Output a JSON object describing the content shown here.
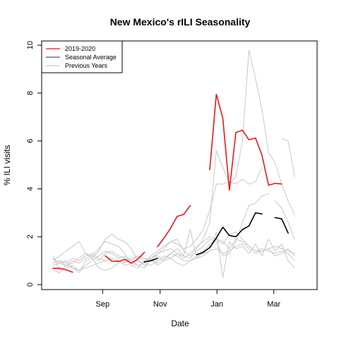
{
  "chart_data": {
    "type": "line",
    "title": "New Mexico's rILI Seasonality",
    "xlabel": "Date",
    "ylabel": "% ILI visits",
    "ylim": [
      0,
      10
    ],
    "xlim": [
      0,
      38.7
    ],
    "yticks": [
      0,
      2,
      4,
      6,
      8,
      10
    ],
    "xticks": [
      {
        "label": "Sep",
        "x": 7.6
      },
      {
        "label": "Nov",
        "x": 16.4
      },
      {
        "label": "Jan",
        "x": 25.1
      },
      {
        "label": "Mar",
        "x": 33.8
      }
    ],
    "grid": false,
    "legend_position": "top-left",
    "legend": [
      {
        "label": "2019-2020",
        "color": "#e31a1c"
      },
      {
        "label": "Seasonal Average",
        "color": "#555555"
      },
      {
        "label": "Previous Years",
        "color": "#c8c8c8"
      }
    ],
    "series": [
      {
        "name": "Previous Years",
        "color": "#c8c8c8",
        "width": 1,
        "values": [
          1.2,
          0.6,
          0.8,
          0.7,
          0.5,
          1.0,
          1.1,
          0.7,
          0.6,
          0.7,
          0.9,
          1.1,
          0.9,
          0.8,
          0.7,
          1.1,
          0.8,
          1.0,
          1.3,
          1.5,
          1.2,
          2.3,
          1.1,
          1.4,
          1.7,
          1.9,
          1.8,
          1.5,
          1.9,
          1.8,
          1.6,
          1.4,
          1.4,
          1.5,
          1.2,
          1.3,
          1.5,
          1.2
        ]
      },
      {
        "name": "Previous Years",
        "color": "#c8c8c8",
        "width": 1,
        "values": [
          0.9,
          1.0,
          0.8,
          0.9,
          1.1,
          1.3,
          1.2,
          1.5,
          1.8,
          1.7,
          1.6,
          1.3,
          0.8,
          0.7,
          1.0,
          1.2,
          1.4,
          1.6,
          1.8,
          1.7,
          1.5,
          1.6,
          1.9,
          2.3,
          3.1,
          4.2,
          4.2,
          4.3,
          4.2,
          4.4,
          4.2,
          4.3,
          4.9,
          null,
          3.5,
          3.2,
          2.6,
          1.9
        ]
      },
      {
        "name": "Previous Years",
        "color": "#c8c8c8",
        "width": 1,
        "values": [
          1.0,
          1.2,
          1.4,
          1.6,
          1.8,
          1.3,
          1.1,
          1.4,
          1.9,
          2.1,
          1.9,
          1.8,
          1.5,
          1.0,
          0.8,
          1.0,
          1.3,
          1.5,
          1.8,
          1.9,
          1.4,
          1.2,
          1.5,
          1.9,
          2.6,
          5.6,
          4.9,
          4.2,
          4.5,
          6.0,
          9.8,
          8.6,
          7.3,
          5.5,
          5.1,
          4.2,
          3.5,
          2.9
        ]
      },
      {
        "name": "Previous Years",
        "color": "#c8c8c8",
        "width": 1,
        "values": [
          0.8,
          0.9,
          1.0,
          0.7,
          0.6,
          0.8,
          1.0,
          1.2,
          1.4,
          1.3,
          1.1,
          1.2,
          1.0,
          0.8,
          0.9,
          1.1,
          1.2,
          1.0,
          1.1,
          1.3,
          1.2,
          1.1,
          1.4,
          1.6,
          1.9,
          1.8,
          1.2,
          1.3,
          1.8,
          2.6,
          3.3,
          3.4,
          3.7,
          3.8,
          null,
          6.1,
          6.0,
          4.5
        ]
      },
      {
        "name": "Previous Years",
        "color": "#c8c8c8",
        "width": 1,
        "values": [
          0.9,
          1.0,
          0.9,
          1.1,
          1.0,
          1.2,
          1.3,
          1.1,
          1.0,
          1.1,
          1.0,
          0.9,
          1.1,
          1.2,
          1.0,
          1.1,
          1.3,
          1.4,
          1.5,
          1.3,
          1.1,
          1.3,
          1.6,
          1.8,
          2.0,
          1.9,
          1.7,
          2.1,
          2.2,
          1.9,
          1.6,
          1.4,
          1.5,
          1.4,
          1.3,
          1.4,
          1.3,
          1.0
        ]
      },
      {
        "name": "Previous Years",
        "color": "#c8c8c8",
        "width": 1,
        "values": [
          1.1,
          0.9,
          0.8,
          1.0,
          0.9,
          1.1,
          1.2,
          1.0,
          1.3,
          1.4,
          1.2,
          1.1,
          1.0,
          1.2,
          1.1,
          1.0,
          0.9,
          1.1,
          1.3,
          1.2,
          1.0,
          1.0,
          1.1,
          1.2,
          1.4,
          2.2,
          0.3,
          1.8,
          1.5,
          1.6,
          1.3,
          1.7,
          1.2,
          1.9,
          1.4,
          1.7,
          1.0,
          0.7
        ]
      },
      {
        "name": "Previous Years",
        "color": "#c8c8c8",
        "width": 1,
        "values": [
          0.6,
          0.5,
          0.7,
          0.8,
          0.6,
          0.7,
          0.8,
          0.9,
          1.0,
          1.1,
          1.0,
          0.8,
          0.9,
          1.0,
          0.9,
          0.8,
          1.0,
          1.2,
          1.1,
          0.9,
          0.8,
          1.0,
          1.2,
          1.3,
          1.4,
          1.5,
          1.3,
          1.4,
          1.6,
          1.7,
          1.5,
          1.3,
          1.4,
          1.5,
          1.6,
          1.5,
          1.4,
          1.3
        ]
      },
      {
        "name": "Seasonal Average",
        "color": "#000000",
        "width": 1.6,
        "values": [
          null,
          null,
          null,
          null,
          null,
          null,
          null,
          null,
          null,
          null,
          null,
          null,
          null,
          null,
          0.95,
          1.0,
          1.1,
          null,
          null,
          null,
          null,
          null,
          1.25,
          1.35,
          1.55,
          1.95,
          2.4,
          2.05,
          2.0,
          2.3,
          2.45,
          3.0,
          2.95,
          null,
          2.8,
          2.75,
          2.15,
          null
        ]
      },
      {
        "name": "2019-2020",
        "color": "#e31a1c",
        "width": 1.6,
        "values": [
          0.68,
          0.68,
          0.62,
          0.52,
          null,
          null,
          null,
          null,
          1.2,
          0.98,
          0.97,
          1.05,
          0.9,
          1.07,
          1.35,
          null,
          1.58,
          1.95,
          2.35,
          2.85,
          2.93,
          3.3,
          null,
          null,
          4.8,
          7.95,
          6.95,
          3.95,
          6.35,
          6.45,
          6.05,
          6.12,
          5.4,
          4.15,
          4.23,
          4.2,
          null,
          null
        ]
      }
    ]
  }
}
